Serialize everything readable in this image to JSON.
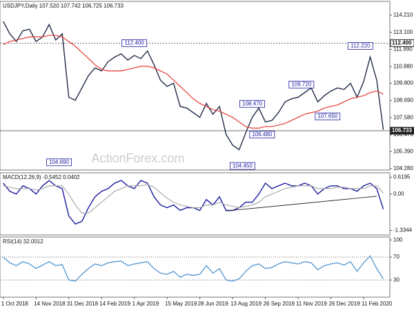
{
  "chart_data": [
    {
      "type": "line",
      "title": "USDJPY,Daily  107.520 107.742 106.725 106.733",
      "ylim": [
        104.19,
        115.1
      ],
      "yticks": [
        {
          "value": 114.21,
          "label": "114.210"
        },
        {
          "value": 113.1,
          "label": "113.100"
        },
        {
          "value": 111.99,
          "label": "111.990"
        },
        {
          "value": 110.88,
          "label": "110.880"
        },
        {
          "value": 109.8,
          "label": "109.800"
        },
        {
          "value": 108.69,
          "label": "108.690"
        },
        {
          "value": 107.58,
          "label": "107.580"
        },
        {
          "value": 106.47,
          "label": "106.470"
        },
        {
          "value": 105.39,
          "label": "105.390"
        },
        {
          "value": 104.28,
          "label": "104.280"
        }
      ],
      "series": [
        {
          "color": "#1f2a44",
          "values": [
            113.8,
            113.0,
            112.5,
            113.2,
            113.3,
            112.5,
            112.8,
            113.6,
            112.6,
            113.0,
            108.9,
            108.7,
            109.5,
            110.3,
            110.8,
            110.6,
            111.2,
            111.5,
            111.7,
            111.3,
            111.6,
            111.4,
            111.9,
            111.0,
            110.0,
            109.6,
            109.8,
            108.3,
            108.2,
            107.9,
            107.6,
            108.5,
            107.8,
            108.3,
            106.5,
            105.8,
            105.5,
            106.6,
            107.6,
            108.2,
            107.3,
            107.4,
            107.9,
            108.6,
            108.8,
            108.9,
            109.2,
            109.5,
            108.6,
            109.0,
            109.3,
            109.5,
            109.4,
            109.8,
            108.9,
            109.9,
            111.5,
            110.0,
            106.8
          ]
        },
        {
          "color": "#e53935",
          "values": [
            112.3,
            112.5,
            112.6,
            112.7,
            112.8,
            112.8,
            112.8,
            112.9,
            112.9,
            112.8,
            112.5,
            112.2,
            111.8,
            111.4,
            111.0,
            110.7,
            110.6,
            110.6,
            110.6,
            110.7,
            110.8,
            110.9,
            110.9,
            110.8,
            110.6,
            110.4,
            110.0,
            109.6,
            109.2,
            108.8,
            108.5,
            108.3,
            108.1,
            108.0,
            107.8,
            107.6,
            107.3,
            107.0,
            106.9,
            106.9,
            107.0,
            107.0,
            107.1,
            107.2,
            107.4,
            107.6,
            107.8,
            107.9,
            108.0,
            108.2,
            108.3,
            108.4,
            108.6,
            108.8,
            108.9,
            109.0,
            109.2,
            109.3,
            109.1
          ]
        }
      ],
      "levels": [
        {
          "value": 112.4,
          "label": "112.400",
          "dashed": true
        },
        {
          "value": 106.733,
          "label": "106.733",
          "dashed": false
        }
      ],
      "annotations": [
        {
          "value": 104.69,
          "label": "104.690"
        },
        {
          "value": 112.4,
          "label": "112.400"
        },
        {
          "value": 104.45,
          "label": "104.450"
        },
        {
          "value": 108.47,
          "label": "108.470"
        },
        {
          "value": 106.48,
          "label": "106.480"
        },
        {
          "value": 109.72,
          "label": "109.720"
        },
        {
          "value": 107.65,
          "label": "107.650"
        },
        {
          "value": 112.22,
          "label": "112.220"
        }
      ],
      "watermark": "ActionForex.com"
    },
    {
      "type": "line",
      "title": "MACD(12,26,9) -0.5452 0.0402",
      "ylim": [
        -1.5,
        0.78
      ],
      "yticks": [
        0.6195,
        {
          "value": 0,
          "label": "0.00"
        },
        -1.3344
      ],
      "series": [
        {
          "color": "#1a1aa0",
          "values": [
            0.4,
            0.1,
            0.0,
            0.3,
            0.2,
            0.0,
            0.3,
            0.5,
            0.3,
            0.2,
            -0.8,
            -1.1,
            -1.0,
            -0.5,
            -0.1,
            0.1,
            0.2,
            0.4,
            0.5,
            0.3,
            0.2,
            0.5,
            0.4,
            -0.1,
            -0.4,
            -0.5,
            -0.4,
            -0.6,
            -0.5,
            -0.5,
            -0.6,
            -0.2,
            -0.4,
            -0.1,
            -0.6,
            -0.6,
            -0.5,
            -0.3,
            -0.3,
            0.0,
            0.4,
            0.2,
            0.3,
            0.4,
            0.3,
            0.3,
            0.4,
            0.3,
            0.0,
            0.2,
            0.3,
            0.3,
            0.2,
            0.2,
            0.1,
            0.3,
            0.4,
            0.2,
            -0.55
          ]
        },
        {
          "color": "#aaaaaa",
          "values": [
            0.3,
            0.25,
            0.2,
            0.2,
            0.2,
            0.15,
            0.2,
            0.3,
            0.3,
            0.3,
            0.0,
            -0.4,
            -0.7,
            -0.7,
            -0.5,
            -0.3,
            -0.1,
            0.1,
            0.2,
            0.3,
            0.3,
            0.3,
            0.35,
            0.25,
            0.05,
            -0.15,
            -0.3,
            -0.4,
            -0.45,
            -0.5,
            -0.5,
            -0.4,
            -0.4,
            -0.3,
            -0.4,
            -0.45,
            -0.5,
            -0.45,
            -0.4,
            -0.3,
            -0.1,
            0.0,
            0.1,
            0.2,
            0.25,
            0.3,
            0.3,
            0.3,
            0.2,
            0.2,
            0.2,
            0.25,
            0.25,
            0.2,
            0.2,
            0.2,
            0.3,
            0.3,
            0.04
          ]
        }
      ],
      "trendline": {
        "x": [
          34,
          57
        ],
        "y": [
          -0.62,
          -0.08
        ]
      }
    },
    {
      "type": "line",
      "title": "RSI(14) 32.0012",
      "ylim": [
        0,
        105
      ],
      "yticks": [
        100,
        70,
        30
      ],
      "guides": [
        70,
        30
      ],
      "series": [
        {
          "color": "#5b9bd5",
          "values": [
            70,
            60,
            55,
            62,
            58,
            50,
            56,
            62,
            55,
            57,
            30,
            28,
            40,
            50,
            58,
            55,
            60,
            62,
            63,
            55,
            58,
            60,
            62,
            50,
            42,
            40,
            45,
            35,
            40,
            38,
            40,
            55,
            42,
            50,
            30,
            28,
            32,
            45,
            55,
            58,
            50,
            52,
            58,
            62,
            60,
            58,
            62,
            60,
            48,
            55,
            58,
            60,
            56,
            62,
            45,
            60,
            72,
            50,
            32
          ]
        }
      ],
      "xlim": [
        -0.5,
        59
      ],
      "xticks": [
        {
          "value": 0,
          "label": "1 Oct 2018"
        },
        {
          "value": 5,
          "label": "14 Nov 2018"
        },
        {
          "value": 10,
          "label": "31 Dec 2018"
        },
        {
          "value": 15,
          "label": "14 Feb 2019"
        },
        {
          "value": 20,
          "label": "1 Apr 2019"
        },
        {
          "value": 25,
          "label": "15 May 2019"
        },
        {
          "value": 30,
          "label": "28 Jun 2019"
        },
        {
          "value": 35,
          "label": "13 Aug 2019"
        },
        {
          "value": 40,
          "label": "26 Sep 2019"
        },
        {
          "value": 45,
          "label": "11 Nov 2019"
        },
        {
          "value": 50,
          "label": "26 Dec 2019"
        },
        {
          "value": 55,
          "label": "11 Feb 2020"
        }
      ]
    }
  ]
}
